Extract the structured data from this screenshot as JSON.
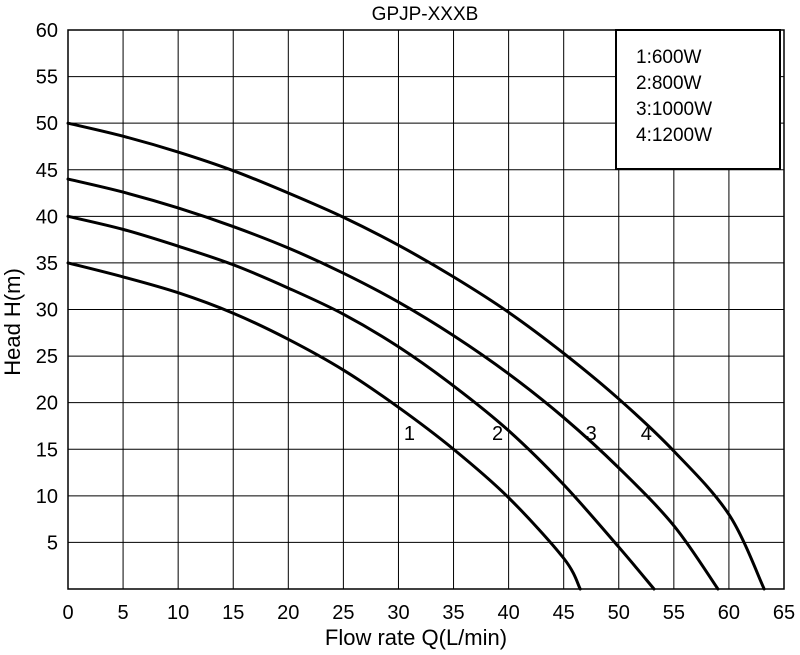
{
  "chart_data": {
    "type": "line",
    "title": "GPJP-XXXB",
    "xlabel": "Flow rate Q(L/min)",
    "ylabel": "Head H(m)",
    "xlim": [
      0,
      65
    ],
    "ylim": [
      0,
      60
    ],
    "x_ticks": [
      "0",
      "5",
      "10",
      "15",
      "20",
      "25",
      "30",
      "35",
      "40",
      "45",
      "50",
      "55",
      "60",
      "65"
    ],
    "y_ticks": [
      "5",
      "10",
      "15",
      "20",
      "25",
      "30",
      "35",
      "40",
      "45",
      "50",
      "55",
      "60"
    ],
    "x_tick_values": [
      0,
      5,
      10,
      15,
      20,
      25,
      30,
      35,
      40,
      45,
      50,
      55,
      60,
      65
    ],
    "y_tick_values": [
      5,
      10,
      15,
      20,
      25,
      30,
      35,
      40,
      45,
      50,
      55,
      60
    ],
    "grid": true,
    "legend_position": "top-right",
    "legend": [
      "1:600W",
      "2:800W",
      "3:1000W",
      "4:1200W"
    ],
    "series": [
      {
        "name": "1",
        "label_x": 31,
        "label_y": 16,
        "points": [
          [
            0,
            35
          ],
          [
            5,
            33.5
          ],
          [
            10,
            31.8
          ],
          [
            15,
            29.6
          ],
          [
            20,
            26.8
          ],
          [
            25,
            23.5
          ],
          [
            30,
            19.5
          ],
          [
            35,
            15
          ],
          [
            40,
            9.8
          ],
          [
            45,
            3.3
          ],
          [
            46.5,
            0
          ]
        ]
      },
      {
        "name": "2",
        "label_x": 39,
        "label_y": 16,
        "points": [
          [
            0,
            40
          ],
          [
            5,
            38.6
          ],
          [
            10,
            36.8
          ],
          [
            15,
            34.8
          ],
          [
            20,
            32.3
          ],
          [
            25,
            29.5
          ],
          [
            30,
            26
          ],
          [
            35,
            21.8
          ],
          [
            40,
            17
          ],
          [
            45,
            11.2
          ],
          [
            50,
            4.5
          ],
          [
            53.2,
            0
          ]
        ]
      },
      {
        "name": "3",
        "label_x": 47.5,
        "label_y": 16,
        "points": [
          [
            0,
            44
          ],
          [
            5,
            42.6
          ],
          [
            10,
            40.9
          ],
          [
            15,
            38.9
          ],
          [
            20,
            36.6
          ],
          [
            25,
            33.9
          ],
          [
            30,
            30.8
          ],
          [
            35,
            27.2
          ],
          [
            40,
            23.1
          ],
          [
            45,
            18.4
          ],
          [
            50,
            13
          ],
          [
            55,
            6.8
          ],
          [
            59,
            0
          ]
        ]
      },
      {
        "name": "4",
        "label_x": 52.5,
        "label_y": 16,
        "points": [
          [
            0,
            50
          ],
          [
            5,
            48.6
          ],
          [
            10,
            46.9
          ],
          [
            15,
            44.9
          ],
          [
            20,
            42.5
          ],
          [
            25,
            39.9
          ],
          [
            30,
            36.9
          ],
          [
            35,
            33.5
          ],
          [
            40,
            29.7
          ],
          [
            45,
            25.3
          ],
          [
            50,
            20.4
          ],
          [
            55,
            14.8
          ],
          [
            60,
            8
          ],
          [
            63.2,
            0
          ]
        ]
      }
    ]
  }
}
